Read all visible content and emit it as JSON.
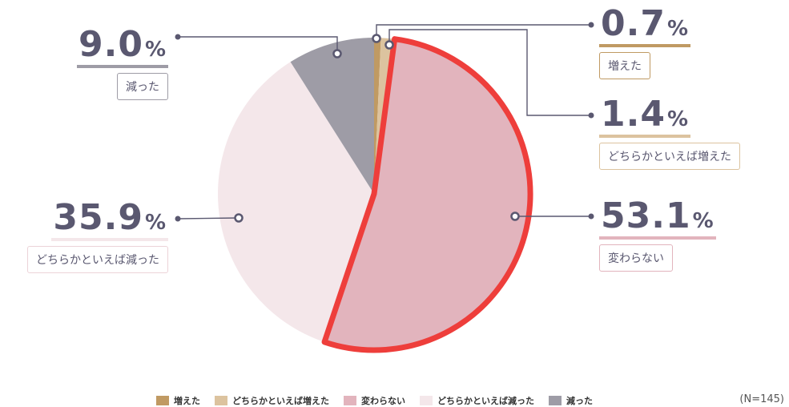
{
  "chart_data": {
    "type": "pie",
    "categories": [
      "増えた",
      "どちらかといえば増えた",
      "変わらない",
      "どちらかといえば減った",
      "減った"
    ],
    "values": [
      0.7,
      1.4,
      53.1,
      35.9,
      9.0
    ],
    "value_labels": [
      "0.7",
      "1.4",
      "53.1",
      "35.9",
      "9.0"
    ],
    "unit": "%",
    "colors": [
      "#c09a63",
      "#dcc39f",
      "#e2b4bd",
      "#f4e7ea",
      "#9e9ca6"
    ],
    "highlight": "変わらない",
    "highlight_color": "#ee3e3b",
    "start": "12 o'clock, clockwise",
    "legend": "bottom",
    "note": "(N=145)"
  }
}
